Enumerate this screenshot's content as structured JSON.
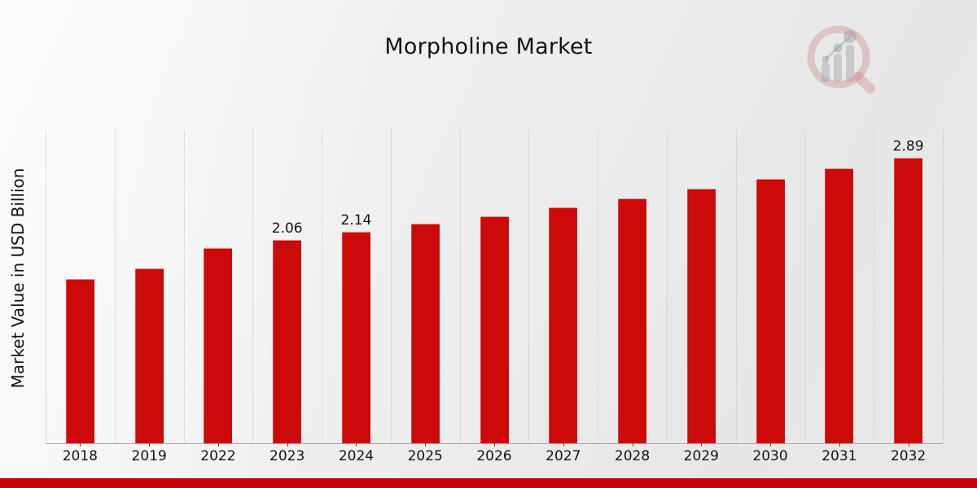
{
  "page": {
    "title": "Morpholine Market"
  },
  "chart_data": {
    "type": "bar",
    "title": "Morpholine Market",
    "xlabel": "",
    "ylabel": "Market Value in USD Billion",
    "categories": [
      "2018",
      "2019",
      "2022",
      "2023",
      "2024",
      "2025",
      "2026",
      "2027",
      "2028",
      "2029",
      "2030",
      "2031",
      "2032"
    ],
    "values": [
      1.66,
      1.77,
      1.98,
      2.06,
      2.14,
      2.22,
      2.3,
      2.39,
      2.48,
      2.58,
      2.68,
      2.78,
      2.89
    ],
    "data_labels": [
      "",
      "",
      "",
      "2.06",
      "2.14",
      "",
      "",
      "",
      "",
      "",
      "",
      "",
      "2.89"
    ],
    "ylim": [
      0,
      3.17
    ],
    "grid": "vertical-dotted",
    "legend": "none",
    "bar_color": "#cc0a0a",
    "grid_color": "#c6c6c6",
    "axis_color": "#a8a8a8",
    "text_color": "#141414"
  },
  "footer": {
    "ribbon_color": "#c20606"
  },
  "logo": {
    "name": "market-research-future-watermark",
    "ring_color": "rgba(198,118,118,0.32)",
    "bar_color": "rgba(142,142,150,0.35)"
  }
}
